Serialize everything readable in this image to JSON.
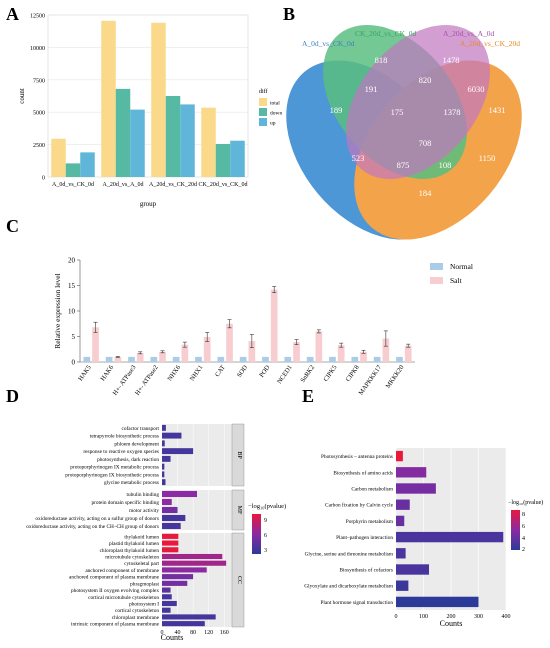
{
  "panels": {
    "A": "A",
    "B": "B",
    "C": "C",
    "D": "D",
    "E": "E"
  },
  "colors": {
    "total": "#fbd98a",
    "down": "#56b9a4",
    "up": "#5fb6d9",
    "venn1": "#2f86cf",
    "venn2": "#3db36b",
    "venn3": "#b75fb6",
    "venn4": "#f2952c",
    "normal": "#a9cde8",
    "salt": "#f7cdd0",
    "grad_high": "#e8193c",
    "grad_mid": "#8b2aa3",
    "grad_low": "#2c3a9a",
    "cat_strip": "#d9d9d9"
  },
  "chart_data": [
    {
      "panel": "A",
      "type": "bar",
      "xlabel": "group",
      "ylabel": "count",
      "ylim": [
        0,
        12500
      ],
      "yticks": [
        "0",
        "2500",
        "5000",
        "7500",
        "10000",
        "12500"
      ],
      "grid": true,
      "legend_title": "diff",
      "legend_position": "right",
      "categories": [
        "A_0d_vs_CK_0d",
        "A_20d_vs_A_0d",
        "A_20d_vs_CK_20d",
        "CK_20d_vs_CK_0d"
      ],
      "series": [
        {
          "name": "total",
          "values": [
            2950,
            12050,
            11900,
            5350
          ]
        },
        {
          "name": "down",
          "values": [
            1050,
            6800,
            6250,
            2550
          ]
        },
        {
          "name": "up",
          "values": [
            1900,
            5200,
            5600,
            2800
          ]
        }
      ]
    },
    {
      "panel": "B",
      "type": "venn",
      "sets": [
        "A_0d_vs_CK_0d",
        "CK_20d_vs_CK_0d",
        "A_20d_vs_A_0d",
        "A_20d_vs_CK_20d"
      ],
      "region_values": [
        "189",
        "818",
        "1478",
        "1431",
        "191",
        "820",
        "6030",
        "175",
        "1378",
        "523",
        "708",
        "1150",
        "875",
        "108",
        "184"
      ]
    },
    {
      "panel": "C",
      "type": "bar",
      "ylabel": "Relative expression level",
      "ylim": [
        0,
        20
      ],
      "yticks": [
        "0",
        "5",
        "10",
        "15",
        "20"
      ],
      "legend_position": "top-right",
      "categories": [
        "HAK5",
        "HAK6",
        "H+- ATPase3",
        "H+- ATPase2",
        "NHX6",
        "NHX1",
        "CAT",
        "SOD",
        "POD",
        "NCED1",
        "SnRK2",
        "CIPK5",
        "CIPK8",
        "MAPKKK17",
        "MKKK20"
      ],
      "series": [
        {
          "name": "Normal",
          "values": [
            1,
            1,
            1,
            1,
            1,
            1,
            1,
            1,
            1,
            1,
            1,
            1,
            1,
            1,
            1
          ]
        },
        {
          "name": "Salt",
          "values": [
            6.8,
            1.0,
            1.8,
            2.0,
            3.4,
            4.9,
            7.5,
            4.1,
            14.2,
            3.9,
            6.0,
            3.3,
            2.0,
            4.6,
            3.2
          ]
        }
      ],
      "errors": [
        1.0,
        0.1,
        0.2,
        0.2,
        0.5,
        0.9,
        0.8,
        1.3,
        0.6,
        0.5,
        0.3,
        0.4,
        0.3,
        1.5,
        0.3
      ]
    },
    {
      "panel": "D",
      "type": "bar",
      "orientation": "horizontal",
      "xlabel": "Counts",
      "xlim": [
        0,
        180
      ],
      "xticks": [
        "0",
        "40",
        "80",
        "120",
        "160"
      ],
      "legend_title": "−log₁₀(pvalue)",
      "legend_ticks": [
        "9",
        "6",
        "3"
      ],
      "groups": [
        {
          "name": "BP",
          "terms": [
            "cofactor transport",
            "tetrapyrrole biosynthetic process",
            "phloem development",
            "response to reactive oxygen species",
            "photosynthesis, dark reaction",
            "protoporphyrinogen IX metabolic process",
            "protoporphyrinogen IX biosynthetic process",
            "glycine metabolic process"
          ],
          "values": [
            10,
            50,
            7,
            80,
            22,
            6,
            6,
            9
          ],
          "pvalues": [
            3,
            3,
            3,
            3,
            3,
            3,
            3,
            3
          ]
        },
        {
          "name": "MF",
          "terms": [
            "tubulin binding",
            "protein domain specific binding",
            "motor activity",
            "oxidoreductase activity, acting on a sulfur group of donors",
            "oxidoreductase activity, acting on the CH–CH group of donors"
          ],
          "values": [
            90,
            25,
            40,
            60,
            48
          ],
          "pvalues": [
            6,
            6,
            5,
            3,
            3
          ]
        },
        {
          "name": "CC",
          "terms": [
            "thylakoid lumen",
            "plastid thylakoid lumen",
            "chloroplast thylakoid lumen",
            "microtubule cytoskeleton",
            "cytoskeletal part",
            "anchored component of membrane",
            "anchored component of plasma membrane",
            "phragmoplast",
            "photosystem II oxygen evolving complex",
            "cortical microtubule cytoskeleton",
            "photosystem I",
            "cortical cytoskeleton",
            "chloroplast membrane",
            "intrinsic component of plasma membrane"
          ],
          "values": [
            42,
            42,
            42,
            155,
            165,
            115,
            80,
            65,
            22,
            25,
            38,
            22,
            138,
            110
          ],
          "pvalues": [
            10,
            10,
            10,
            7,
            7,
            6,
            5,
            5,
            4,
            3,
            3,
            3,
            3,
            3
          ]
        }
      ]
    },
    {
      "panel": "E",
      "type": "bar",
      "orientation": "horizontal",
      "xlabel": "Counts",
      "xlim": [
        0,
        400
      ],
      "xticks": [
        "0",
        "100",
        "200",
        "300",
        "400"
      ],
      "legend_title": "−log₁₀(pvalue)",
      "legend_ticks": [
        "8",
        "6",
        "4",
        "2"
      ],
      "categories": [
        "Photosynthesis – antenna proteins",
        "Biosynthesis of amino acids",
        "Carbon metabolism",
        "Carbon fixation by Calvin cycle",
        "Porphyrin metabolism",
        "Plant–pathogen interaction",
        "Glycine, serine and threonine metabolism",
        "Biosynthesis of cofactors",
        "Glyoxylate and dicarboxylate metabolism",
        "Plant hormone signal transduction"
      ],
      "values": [
        25,
        110,
        145,
        50,
        30,
        390,
        35,
        120,
        45,
        300
      ],
      "pvalues": [
        8.5,
        5,
        4.5,
        4,
        4,
        3,
        3,
        3,
        2.5,
        2
      ]
    }
  ]
}
